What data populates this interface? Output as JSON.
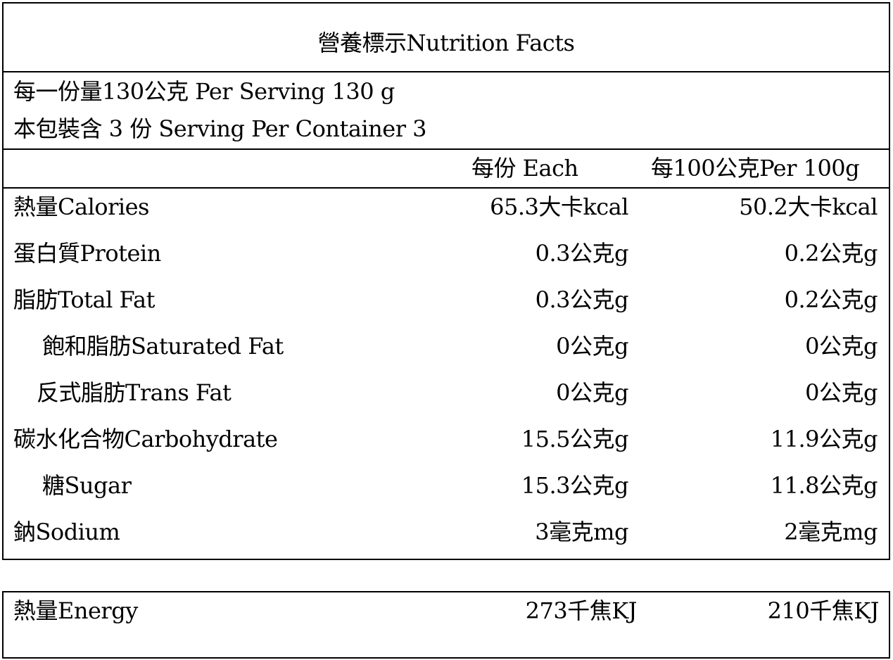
{
  "title": "營養標示Nutrition Facts",
  "serving": {
    "per_serving": "每一份量130公克 Per Serving  130  g",
    "per_container": "本包裝含 3 份 Serving Per Container 3"
  },
  "columns": {
    "each": "每份 Each",
    "per100": "每100公克Per 100g"
  },
  "rows": [
    {
      "label": "熱量Calories",
      "each": "65.3大卡kcal",
      "per100": "50.2大卡kcal"
    },
    {
      "label": "蛋白質Protein",
      "each": "0.3公克g",
      "per100": "0.2公克g"
    },
    {
      "label": "脂肪Total Fat",
      "each": "0.3公克g",
      "per100": "0.2公克g"
    },
    {
      "label": "飽和脂肪Saturated Fat",
      "each": "0公克g",
      "per100": "0公克g"
    },
    {
      "label": "反式脂肪Trans Fat",
      "each": "0公克g",
      "per100": "0公克g"
    },
    {
      "label": "碳水化合物Carbohydrate",
      "each": "15.5公克g",
      "per100": "11.9公克g"
    },
    {
      "label": "糖Sugar",
      "each": "15.3公克g",
      "per100": "11.8公克g"
    },
    {
      "label": "鈉Sodium",
      "each": "3毫克mg",
      "per100": "2毫克mg"
    }
  ],
  "energy": {
    "label": "熱量Energy",
    "each": "273千焦KJ",
    "per100": "210千焦KJ"
  }
}
